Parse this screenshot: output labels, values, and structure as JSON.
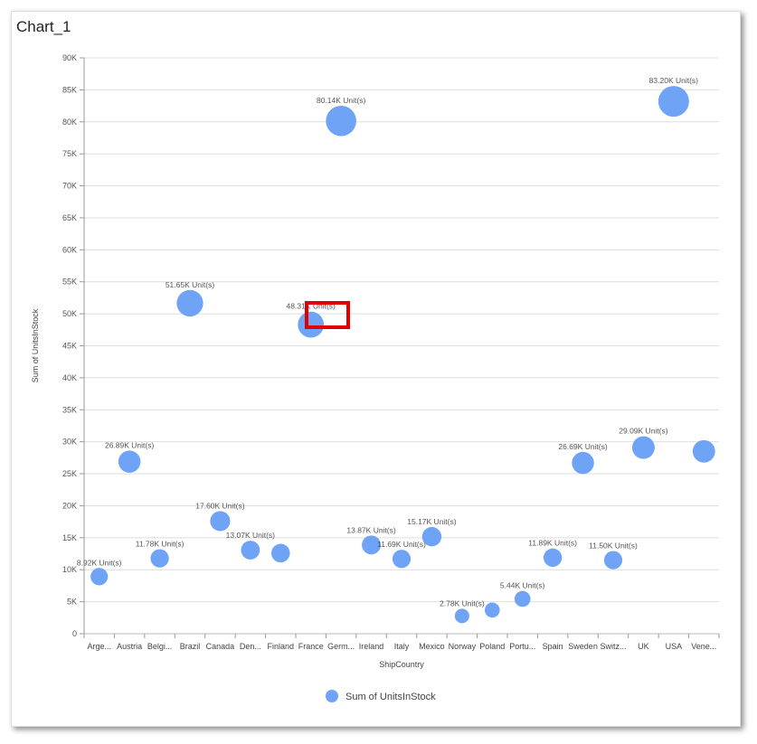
{
  "title": "Chart_1",
  "chart_data": {
    "type": "bubble",
    "title": "Chart_1",
    "xlabel": "ShipCountry",
    "ylabel": "Sum of UnitsInStock",
    "ylim": [
      0,
      90000
    ],
    "ytick_step": 5000,
    "ytick_labels": [
      "0",
      "5K",
      "10K",
      "15K",
      "20K",
      "25K",
      "30K",
      "35K",
      "40K",
      "45K",
      "50K",
      "55K",
      "60K",
      "65K",
      "70K",
      "75K",
      "80K",
      "85K",
      "90K"
    ],
    "grid": true,
    "legend": {
      "position": "bottom",
      "entries": [
        "Sum of UnitsInStock"
      ]
    },
    "color": "#6fa3f6",
    "categories": [
      "Arge...",
      "Austria",
      "Belgi...",
      "Brazil",
      "Canada",
      "Den...",
      "Finland",
      "France",
      "Germ...",
      "Ireland",
      "Italy",
      "Mexico",
      "Norway",
      "Poland",
      "Portu...",
      "Spain",
      "Sweden",
      "Switz...",
      "UK",
      "USA",
      "Vene..."
    ],
    "values": [
      8920,
      26890,
      11780,
      51650,
      17600,
      13070,
      12600,
      48310,
      80140,
      13870,
      11690,
      15170,
      2780,
      3700,
      5440,
      11890,
      26690,
      11500,
      29090,
      83200,
      28500
    ],
    "data_labels": [
      "8.92K Unit(s)",
      "26.89K Unit(s)",
      "11.78K Unit(s)",
      "51.65K Unit(s)",
      "17.60K Unit(s)",
      "13.07K Unit(s)",
      "",
      "48.31K Unit(s)",
      "80.14K Unit(s)",
      "13.87K Unit(s)",
      "11.69K Unit(s)",
      "15.17K Unit(s)",
      "2.78K Unit(s)",
      "",
      "5.44K Unit(s)",
      "11.89K Unit(s)",
      "26.69K Unit(s)",
      "11.50K Unit(s)",
      "29.09K Unit(s)",
      "83.20K Unit(s)",
      ""
    ]
  }
}
